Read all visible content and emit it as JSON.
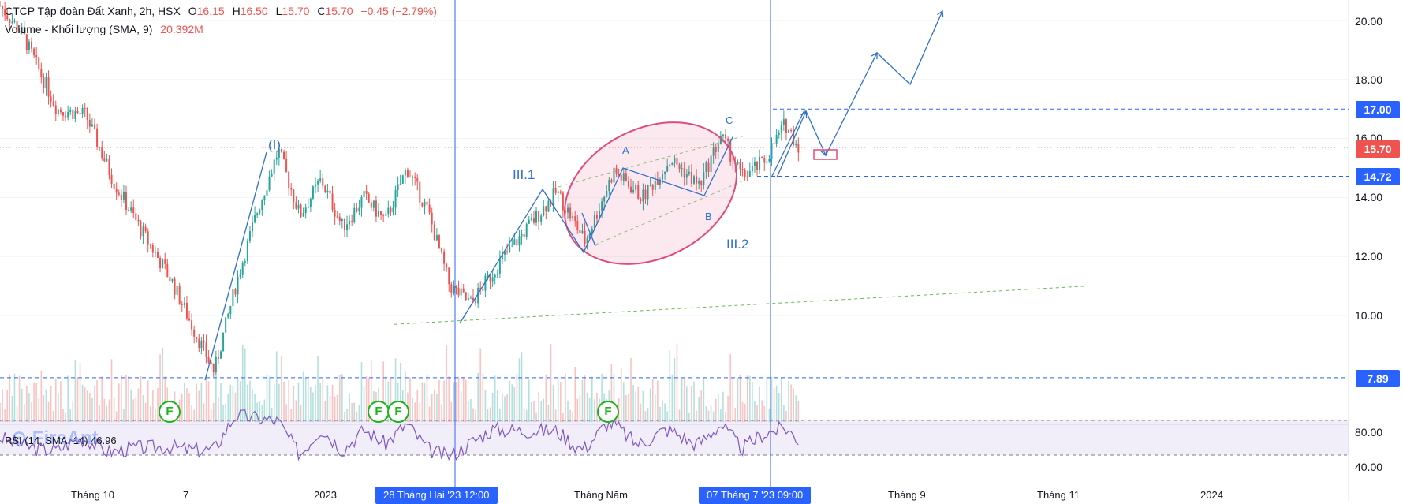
{
  "legend": {
    "symbol": "CTCP Tập đoàn Đất Xanh, 2h, HSX",
    "open_label": "O",
    "open": "16.15",
    "high_label": "H",
    "high": "16.50",
    "low_label": "L",
    "low": "15.70",
    "close_label": "C",
    "close": "15.70",
    "change": "−0.45 (−2.79%)",
    "volume_label": "Volume - Khối lượng (SMA, 9)",
    "volume_value": "20.392M",
    "rsi_label": "RSI (14, SMA, 14)  46.96"
  },
  "watermark": "FireAnt",
  "price_tags": {
    "last": "15.70",
    "level_17": "17.00",
    "level_1472": "14.72",
    "level_789": "7.89"
  },
  "y_axis_labels": [
    "20.00",
    "18.00",
    "16.00",
    "14.00",
    "12.00",
    "10.00",
    "80.00",
    "40.00"
  ],
  "x_axis_labels": [
    "Tháng 10",
    "7",
    "2023",
    "Tháng Năm",
    "Tháng 9",
    "Tháng 11",
    "2024"
  ],
  "date_tags": [
    "28 Tháng Hai '23   12:00",
    "07 Tháng 7 '23   09:00"
  ],
  "wave_labels": {
    "i": "(I)",
    "iii1": "III.1",
    "iii2": "III.2",
    "a": "A",
    "b": "B",
    "c": "C"
  },
  "f_badge": "F",
  "colors": {
    "up": "#26a69a",
    "down": "#ef5350",
    "wave": "#2e6fd0",
    "rsi": "#7e57c2",
    "ellipse": "#e04b7a"
  },
  "chart_data": {
    "type": "line",
    "title": "CTCP Tập đoàn Đất Xanh, 2h, HSX",
    "x_ticks": [
      "Tháng 10",
      "7",
      "2023",
      "Tháng Năm",
      "Tháng 9",
      "Tháng 11",
      "2024"
    ],
    "ylim": [
      7.0,
      20.5
    ],
    "y_ticks": [
      10,
      12,
      14,
      16,
      18,
      20
    ],
    "price_path": [
      {
        "t": 0,
        "p": 20.5
      },
      {
        "t": 3,
        "p": 19.6
      },
      {
        "t": 8,
        "p": 17.0
      },
      {
        "t": 12,
        "p": 16.8
      },
      {
        "t": 16,
        "p": 14.5
      },
      {
        "t": 20,
        "p": 12.8
      },
      {
        "t": 24,
        "p": 11.2
      },
      {
        "t": 27,
        "p": 9.6
      },
      {
        "t": 30,
        "p": 8.1
      },
      {
        "t": 33,
        "p": 11.0
      },
      {
        "t": 36,
        "p": 13.5
      },
      {
        "t": 39,
        "p": 15.6
      },
      {
        "t": 42,
        "p": 13.4
      },
      {
        "t": 45,
        "p": 14.6
      },
      {
        "t": 48,
        "p": 13.0
      },
      {
        "t": 51,
        "p": 14.0
      },
      {
        "t": 54,
        "p": 13.2
      },
      {
        "t": 57,
        "p": 15.0
      },
      {
        "t": 60,
        "p": 13.5
      },
      {
        "t": 63,
        "p": 11.0
      },
      {
        "t": 66,
        "p": 10.4
      },
      {
        "t": 70,
        "p": 11.8
      },
      {
        "t": 74,
        "p": 13.0
      },
      {
        "t": 78,
        "p": 14.2
      },
      {
        "t": 82,
        "p": 12.5
      },
      {
        "t": 86,
        "p": 14.9
      },
      {
        "t": 90,
        "p": 14.0
      },
      {
        "t": 94,
        "p": 15.3
      },
      {
        "t": 98,
        "p": 14.4
      },
      {
        "t": 101,
        "p": 16.1
      },
      {
        "t": 104,
        "p": 14.7
      },
      {
        "t": 107,
        "p": 15.2
      },
      {
        "t": 110,
        "p": 16.5
      },
      {
        "t": 112,
        "p": 15.7
      }
    ],
    "projection": [
      {
        "t": 112,
        "p": 17.0
      },
      {
        "t": 113,
        "p": 15.5
      },
      {
        "t": 117,
        "p": 19.0
      },
      {
        "t": 121,
        "p": 17.8
      },
      {
        "t": 125,
        "p": 20.4
      }
    ],
    "horizontal_levels": [
      17.0,
      14.72,
      7.89
    ],
    "last_price": 15.7,
    "volume_sma": "20.392M",
    "rsi": {
      "period": 14,
      "value": 46.96,
      "levels": [
        70,
        30
      ],
      "ticks": [
        80,
        40
      ]
    }
  }
}
